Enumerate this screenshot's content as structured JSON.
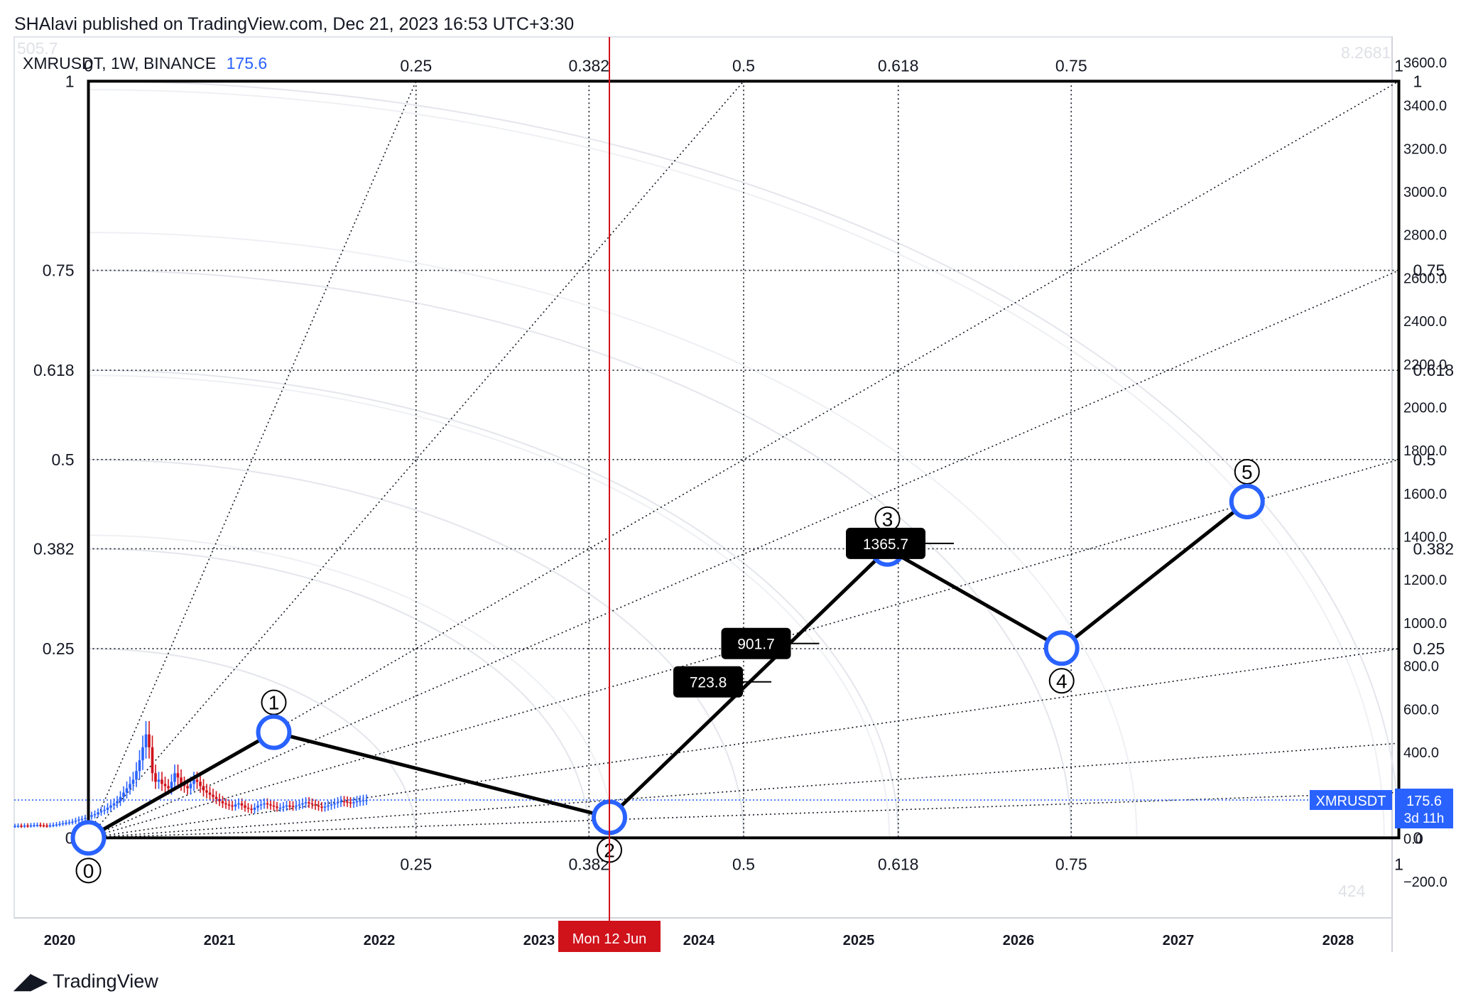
{
  "header": {
    "published_line": "SHAlavi published on TradingView.com, Dec 21, 2023 16:53 UTC+3:30",
    "symbol_label": "XMRUSDT, 1W, BINANCE",
    "symbol_price": "175.6"
  },
  "footer": {
    "brand": "TradingView"
  },
  "colors": {
    "accent": "#2962ff",
    "crosshair": "#d0121b",
    "bull": "#2962ff",
    "bear": "#d0121b",
    "label_bg": "#000000"
  },
  "chart_data": {
    "type": "line",
    "title": "",
    "symbol": "XMRUSDT",
    "interval": "1W",
    "exchange": "BINANCE",
    "ylim": [
      -250,
      3720
    ],
    "y_ticks": [
      -200.0,
      0.0,
      200.0,
      400.0,
      600.0,
      800.0,
      1000.0,
      1200.0,
      1400.0,
      1600.0,
      1800.0,
      2000.0,
      2200.0,
      2400.0,
      2600.0,
      2800.0,
      3000.0,
      3200.0,
      3400.0,
      3600.0
    ],
    "y_tick_labels": [
      "−200.0",
      "0.0",
      "400.0",
      "600.0",
      "800.0",
      "1000.0",
      "1200.0",
      "1400.0",
      "1600.0",
      "1800.0",
      "2000.0",
      "2200.0",
      "2400.0",
      "2600.0",
      "2800.0",
      "3000.0",
      "3200.0",
      "3400.0",
      "3600.0"
    ],
    "x_ticks": [
      "2020",
      "2021",
      "2022",
      "2023",
      "2024",
      "2025",
      "2026",
      "2027",
      "2028"
    ],
    "x_tick_years": [
      2020.0,
      2021.0,
      2022.0,
      2023.0,
      2024.0,
      2025.0,
      2026.0,
      2027.0,
      2028.0
    ],
    "crosshair": {
      "x": 2023.44,
      "label": "Mon 12 Jun"
    },
    "last_price": {
      "symbol": "XMRUSDT",
      "value": 175.6,
      "value_label": "175.6",
      "countdown": "3d 11h"
    },
    "hidden_scale_labels": {
      "top_left": "505.7",
      "top_right": "8.2681",
      "bottom_right": "424"
    },
    "gann_box": {
      "x_range": [
        2020.18,
        2028.38
      ],
      "price_range": [
        0,
        3510
      ],
      "levels": [
        0.25,
        0.382,
        0.5,
        0.618,
        0.75
      ],
      "level_labels": [
        "0",
        "0.25",
        "0.382",
        "0.5",
        "0.618",
        "0.75",
        "1"
      ]
    },
    "wave_points": [
      {
        "label": "0",
        "x": 2020.18,
        "y": 0
      },
      {
        "label": "1",
        "x": 2021.34,
        "y": 490
      },
      {
        "label": "2",
        "x": 2023.44,
        "y": 95
      },
      {
        "label": "3",
        "x": 2025.18,
        "y": 1340
      },
      {
        "label": "4",
        "x": 2026.27,
        "y": 880
      },
      {
        "label": "5",
        "x": 2027.43,
        "y": 1560
      }
    ],
    "price_labels": [
      {
        "text": "1365.7",
        "value": 1365.7,
        "x": 2024.92
      },
      {
        "text": "901.7",
        "value": 901.7,
        "x": 2024.14
      },
      {
        "text": "723.8",
        "value": 723.8,
        "x": 2023.84
      }
    ],
    "candles": {
      "start_x": 2019.72,
      "step": 0.02,
      "closes": [
        55,
        56,
        54,
        57,
        56,
        58,
        59,
        60,
        58,
        57,
        56,
        58,
        60,
        62,
        65,
        68,
        70,
        72,
        75,
        80,
        85,
        88,
        92,
        98,
        105,
        110,
        118,
        125,
        130,
        140,
        150,
        160,
        170,
        190,
        210,
        230,
        250,
        270,
        310,
        360,
        420,
        480,
        420,
        300,
        260,
        270,
        250,
        240,
        230,
        260,
        300,
        280,
        250,
        240,
        230,
        250,
        270,
        260,
        240,
        220,
        210,
        200,
        190,
        180,
        170,
        160,
        155,
        150,
        145,
        155,
        160,
        150,
        140,
        135,
        130,
        140,
        150,
        155,
        160,
        155,
        150,
        145,
        140,
        140,
        145,
        150,
        148,
        145,
        150,
        155,
        160,
        165,
        160,
        155,
        150,
        145,
        140,
        145,
        150,
        155,
        160,
        165,
        170,
        168,
        165,
        160,
        165,
        170,
        172,
        175,
        176
      ]
    }
  }
}
